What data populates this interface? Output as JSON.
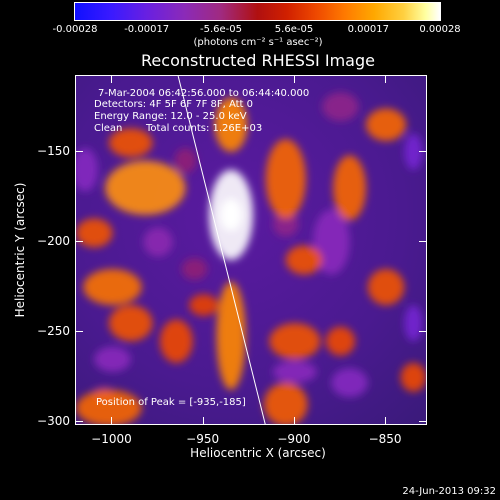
{
  "colorbar": {
    "tick_labels": [
      "-0.00028",
      "-0.00017",
      "-5.6e-05",
      "5.6e-05",
      "0.00017",
      "0.00028"
    ],
    "tick_values": [
      -0.00028,
      -0.00017,
      -5.6e-05,
      5.6e-05,
      0.00017,
      0.00028
    ],
    "unit_label": "(photons cm⁻² s⁻¹ asec⁻²)"
  },
  "info": {
    "time_range": "7-Mar-2004 06:42:56.000 to 06:44:40.000",
    "detectors": "Detectors: 4F 5F 6F 7F 8F, Att 0",
    "energy_range": "Energy Range: 12.0 - 25.0 keV",
    "algorithm": "Clean",
    "total_counts": "Total counts: 1.26E+03",
    "peak_position": "Position of Peak = [-935,-185]"
  },
  "footer": {
    "timestamp": "24-Jun-2013 09:32"
  },
  "chart_data": {
    "type": "heatmap",
    "title": "Reconstructed RHESSI Image",
    "xlabel": "Heliocentric X (arcsec)",
    "ylabel": "Heliocentric Y (arcsec)",
    "xlim": [
      -1020,
      -827
    ],
    "ylim": [
      -302,
      -108
    ],
    "xticks": [
      -1000,
      -950,
      -900,
      -850
    ],
    "xtick_labels": [
      "−1000",
      "−950",
      "−900",
      "−850"
    ],
    "yticks": [
      -150,
      -200,
      -250,
      -300
    ],
    "ytick_labels": [
      "−150",
      "−200",
      "−250",
      "−300"
    ],
    "zlim": [
      -0.00028,
      0.00028
    ],
    "peak": {
      "x": -935,
      "y": -185
    },
    "limb_line": [
      [
        -964,
        -108
      ],
      [
        -916,
        -302
      ]
    ],
    "sources": [
      {
        "x": -935,
        "y": -185,
        "rx": 12,
        "ry": 25,
        "v": 0.00028
      },
      {
        "x": -935,
        "y": -135,
        "rx": 9,
        "ry": 15,
        "v": 0.00015
      },
      {
        "x": -935,
        "y": -252,
        "rx": 8,
        "ry": 30,
        "v": 0.00015
      },
      {
        "x": -982,
        "y": -170,
        "rx": 22,
        "ry": 15,
        "v": 0.00016
      },
      {
        "x": -990,
        "y": -145,
        "rx": 12,
        "ry": 8,
        "v": 0.0001
      },
      {
        "x": -1010,
        "y": -195,
        "rx": 10,
        "ry": 8,
        "v": 0.0001
      },
      {
        "x": -1000,
        "y": -225,
        "rx": 16,
        "ry": 10,
        "v": 0.00013
      },
      {
        "x": -990,
        "y": -245,
        "rx": 12,
        "ry": 10,
        "v": 0.0001
      },
      {
        "x": -965,
        "y": -255,
        "rx": 9,
        "ry": 12,
        "v": 9e-05
      },
      {
        "x": -1002,
        "y": -292,
        "rx": 18,
        "ry": 10,
        "v": 0.00012
      },
      {
        "x": -905,
        "y": -165,
        "rx": 11,
        "ry": 22,
        "v": 0.00012
      },
      {
        "x": -895,
        "y": -210,
        "rx": 10,
        "ry": 8,
        "v": 0.0001
      },
      {
        "x": -900,
        "y": -255,
        "rx": 14,
        "ry": 10,
        "v": 0.0001
      },
      {
        "x": -905,
        "y": -290,
        "rx": 12,
        "ry": 12,
        "v": 0.00011
      },
      {
        "x": -870,
        "y": -170,
        "rx": 9,
        "ry": 18,
        "v": 0.00012
      },
      {
        "x": -850,
        "y": -135,
        "rx": 11,
        "ry": 9,
        "v": 0.00012
      },
      {
        "x": -850,
        "y": -225,
        "rx": 10,
        "ry": 10,
        "v": 0.0001
      },
      {
        "x": -875,
        "y": -255,
        "rx": 8,
        "ry": 8,
        "v": 9e-05
      },
      {
        "x": -835,
        "y": -275,
        "rx": 7,
        "ry": 8,
        "v": 9e-05
      },
      {
        "x": -950,
        "y": -235,
        "rx": 8,
        "ry": 6,
        "v": 8e-05
      },
      {
        "x": -955,
        "y": -215,
        "rx": 7,
        "ry": 6,
        "v": -5e-05
      },
      {
        "x": -960,
        "y": -155,
        "rx": 6,
        "ry": 7,
        "v": -5e-05
      },
      {
        "x": -975,
        "y": -200,
        "rx": 8,
        "ry": 8,
        "v": -8e-05
      },
      {
        "x": -1000,
        "y": -265,
        "rx": 10,
        "ry": 7,
        "v": -9e-05
      },
      {
        "x": -1015,
        "y": -160,
        "rx": 7,
        "ry": 12,
        "v": -0.0001
      },
      {
        "x": -905,
        "y": -190,
        "rx": 7,
        "ry": 7,
        "v": -6e-05
      },
      {
        "x": -880,
        "y": -200,
        "rx": 10,
        "ry": 18,
        "v": -9e-05
      },
      {
        "x": -875,
        "y": -125,
        "rx": 10,
        "ry": 8,
        "v": -6e-05
      },
      {
        "x": -900,
        "y": -272,
        "rx": 12,
        "ry": 6,
        "v": -9e-05
      },
      {
        "x": -870,
        "y": -278,
        "rx": 10,
        "ry": 8,
        "v": -0.0001
      },
      {
        "x": -835,
        "y": -150,
        "rx": 5,
        "ry": 10,
        "v": -0.00014
      },
      {
        "x": -835,
        "y": -245,
        "rx": 5,
        "ry": 10,
        "v": -0.00014
      },
      {
        "x": -1005,
        "y": -285,
        "rx": 6,
        "ry": 5,
        "v": -6e-05
      }
    ]
  }
}
